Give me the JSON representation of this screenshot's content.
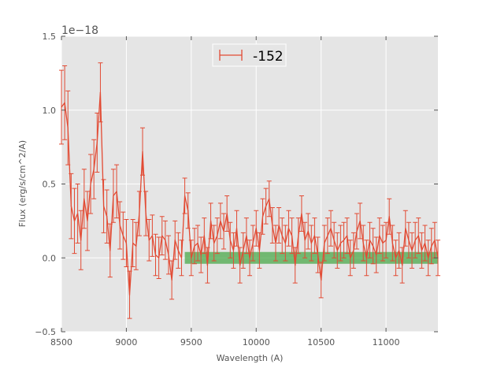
{
  "chart_data": {
    "type": "line",
    "title": "",
    "xlabel": "Wavelength (A)",
    "ylabel": "Flux (erg/s/cm^2/A)",
    "y_offset_label": "1e−18",
    "xlim": [
      8500,
      11400
    ],
    "ylim": [
      -0.5,
      1.5
    ],
    "xticks": [
      8500,
      9000,
      9500,
      10000,
      10500,
      11000
    ],
    "xtick_labels": [
      "8500",
      "9000",
      "9500",
      "10000",
      "10500",
      "11000"
    ],
    "yticks": [
      -0.5,
      0.0,
      0.5,
      1.0,
      1.5
    ],
    "ytick_labels": [
      "−0.5",
      "0.0",
      "0.5",
      "1.0",
      "1.5"
    ],
    "grid": true,
    "legend_position": "top-center",
    "colors": {
      "series": "#e24a33",
      "band": "#4aa84a",
      "axes_bg": "#e5e5e5",
      "grid": "#ffffff"
    },
    "series": [
      {
        "name": "-152",
        "x": [
          8500,
          8525,
          8550,
          8575,
          8600,
          8625,
          8650,
          8675,
          8700,
          8725,
          8750,
          8775,
          8800,
          8825,
          8850,
          8875,
          8900,
          8925,
          8950,
          8975,
          9000,
          9025,
          9050,
          9075,
          9100,
          9125,
          9150,
          9175,
          9200,
          9225,
          9250,
          9275,
          9300,
          9325,
          9350,
          9375,
          9400,
          9425,
          9450,
          9475,
          9500,
          9525,
          9550,
          9575,
          9600,
          9625,
          9650,
          9675,
          9700,
          9725,
          9750,
          9775,
          9800,
          9825,
          9850,
          9875,
          9900,
          9925,
          9950,
          9975,
          10000,
          10025,
          10050,
          10075,
          10100,
          10125,
          10150,
          10175,
          10200,
          10225,
          10250,
          10275,
          10300,
          10325,
          10350,
          10375,
          10400,
          10425,
          10450,
          10475,
          10500,
          10525,
          10550,
          10575,
          10600,
          10625,
          10650,
          10675,
          10700,
          10725,
          10750,
          10775,
          10800,
          10825,
          10850,
          10875,
          10900,
          10925,
          10950,
          10975,
          11000,
          11025,
          11050,
          11075,
          11100,
          11125,
          11150,
          11175,
          11200,
          11225,
          11250,
          11275,
          11300,
          11325,
          11350,
          11375,
          11400
        ],
        "y": [
          1.02,
          1.05,
          0.88,
          0.35,
          0.25,
          0.3,
          0.12,
          0.4,
          0.25,
          0.5,
          0.6,
          0.78,
          1.12,
          0.35,
          0.28,
          0.05,
          0.42,
          0.45,
          0.22,
          0.15,
          0.1,
          -0.25,
          0.1,
          0.08,
          0.3,
          0.72,
          0.3,
          0.12,
          0.15,
          0.02,
          0.0,
          0.15,
          0.12,
          0.02,
          -0.15,
          0.12,
          0.05,
          0.0,
          0.42,
          0.32,
          0.0,
          0.08,
          0.1,
          0.02,
          0.15,
          -0.05,
          0.25,
          0.1,
          0.15,
          0.25,
          0.18,
          0.3,
          0.12,
          0.05,
          0.2,
          -0.05,
          0.05,
          0.15,
          0.0,
          0.1,
          0.2,
          0.05,
          0.28,
          0.35,
          0.4,
          0.22,
          0.1,
          0.22,
          0.15,
          0.1,
          0.2,
          0.15,
          -0.05,
          0.15,
          0.3,
          0.12,
          0.18,
          0.1,
          0.15,
          0.02,
          -0.15,
          0.1,
          0.15,
          0.2,
          0.12,
          0.05,
          0.1,
          0.12,
          0.15,
          0.0,
          0.05,
          0.18,
          0.25,
          0.1,
          0.0,
          0.12,
          0.08,
          0.02,
          0.15,
          0.1,
          0.12,
          0.28,
          0.1,
          0.0,
          0.05,
          -0.05,
          0.2,
          0.12,
          0.05,
          0.12,
          0.15,
          0.05,
          0.1,
          0.0,
          0.08,
          0.12,
          0.0
        ],
        "err": [
          0.25,
          0.25,
          0.25,
          0.22,
          0.22,
          0.2,
          0.2,
          0.2,
          0.2,
          0.2,
          0.2,
          0.2,
          0.2,
          0.18,
          0.18,
          0.18,
          0.18,
          0.18,
          0.16,
          0.16,
          0.16,
          0.16,
          0.16,
          0.16,
          0.15,
          0.16,
          0.15,
          0.14,
          0.14,
          0.14,
          0.14,
          0.13,
          0.13,
          0.13,
          0.13,
          0.13,
          0.12,
          0.12,
          0.12,
          0.12,
          0.12,
          0.12,
          0.12,
          0.12,
          0.12,
          0.12,
          0.12,
          0.12,
          0.12,
          0.12,
          0.12,
          0.12,
          0.12,
          0.12,
          0.12,
          0.12,
          0.12,
          0.12,
          0.12,
          0.12,
          0.12,
          0.12,
          0.12,
          0.12,
          0.12,
          0.12,
          0.12,
          0.12,
          0.12,
          0.12,
          0.12,
          0.12,
          0.12,
          0.12,
          0.12,
          0.12,
          0.12,
          0.12,
          0.12,
          0.12,
          0.12,
          0.12,
          0.12,
          0.12,
          0.12,
          0.12,
          0.12,
          0.12,
          0.12,
          0.12,
          0.12,
          0.12,
          0.12,
          0.12,
          0.12,
          0.12,
          0.12,
          0.12,
          0.12,
          0.12,
          0.12,
          0.12,
          0.12,
          0.12,
          0.12,
          0.12,
          0.12,
          0.12,
          0.12,
          0.12,
          0.12,
          0.12,
          0.12,
          0.12,
          0.12,
          0.12,
          0.12
        ]
      }
    ],
    "band": {
      "x_range": [
        9450,
        11400
      ],
      "y_range": [
        -0.04,
        0.04
      ]
    }
  }
}
